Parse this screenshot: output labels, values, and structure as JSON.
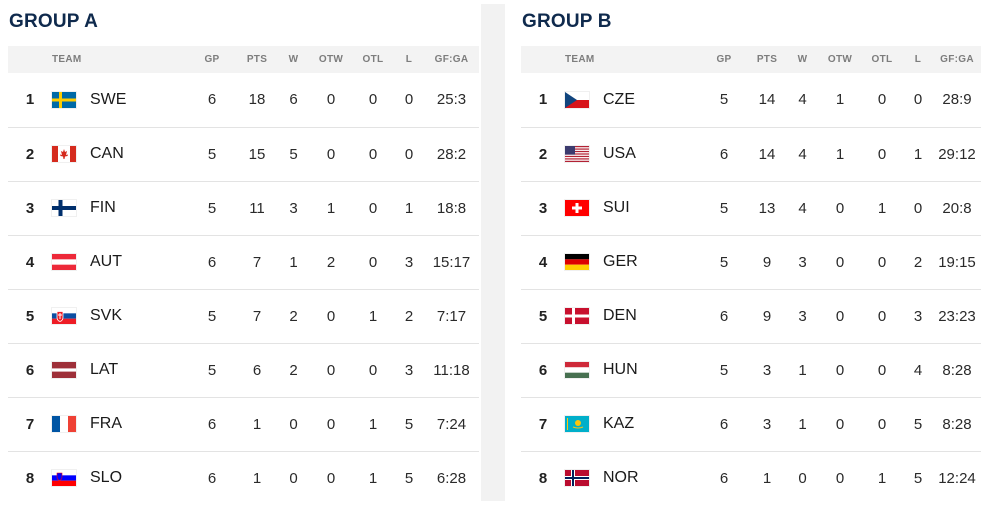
{
  "columns": {
    "team": "TEAM",
    "gp": "GP",
    "pts": "PTS",
    "w": "W",
    "otw": "OTW",
    "otl": "OTL",
    "l": "L",
    "gfga": "GF:GA"
  },
  "groups": [
    {
      "title": "GROUP A",
      "rows": [
        {
          "rank": "1",
          "flag": "sweden-flag-icon",
          "team": "SWE",
          "gp": "6",
          "pts": "18",
          "w": "6",
          "otw": "0",
          "otl": "0",
          "l": "0",
          "gfga": "25:3"
        },
        {
          "rank": "2",
          "flag": "canada-flag-icon",
          "team": "CAN",
          "gp": "5",
          "pts": "15",
          "w": "5",
          "otw": "0",
          "otl": "0",
          "l": "0",
          "gfga": "28:2"
        },
        {
          "rank": "3",
          "flag": "finland-flag-icon",
          "team": "FIN",
          "gp": "5",
          "pts": "11",
          "w": "3",
          "otw": "1",
          "otl": "0",
          "l": "1",
          "gfga": "18:8"
        },
        {
          "rank": "4",
          "flag": "austria-flag-icon",
          "team": "AUT",
          "gp": "6",
          "pts": "7",
          "w": "1",
          "otw": "2",
          "otl": "0",
          "l": "3",
          "gfga": "15:17"
        },
        {
          "rank": "5",
          "flag": "slovakia-flag-icon",
          "team": "SVK",
          "gp": "5",
          "pts": "7",
          "w": "2",
          "otw": "0",
          "otl": "1",
          "l": "2",
          "gfga": "7:17"
        },
        {
          "rank": "6",
          "flag": "latvia-flag-icon",
          "team": "LAT",
          "gp": "5",
          "pts": "6",
          "w": "2",
          "otw": "0",
          "otl": "0",
          "l": "3",
          "gfga": "11:18"
        },
        {
          "rank": "7",
          "flag": "france-flag-icon",
          "team": "FRA",
          "gp": "6",
          "pts": "1",
          "w": "0",
          "otw": "0",
          "otl": "1",
          "l": "5",
          "gfga": "7:24"
        },
        {
          "rank": "8",
          "flag": "slovenia-flag-icon",
          "team": "SLO",
          "gp": "6",
          "pts": "1",
          "w": "0",
          "otw": "0",
          "otl": "1",
          "l": "5",
          "gfga": "6:28"
        }
      ]
    },
    {
      "title": "GROUP B",
      "rows": [
        {
          "rank": "1",
          "flag": "czechia-flag-icon",
          "team": "CZE",
          "gp": "5",
          "pts": "14",
          "w": "4",
          "otw": "1",
          "otl": "0",
          "l": "0",
          "gfga": "28:9"
        },
        {
          "rank": "2",
          "flag": "usa-flag-icon",
          "team": "USA",
          "gp": "6",
          "pts": "14",
          "w": "4",
          "otw": "1",
          "otl": "0",
          "l": "1",
          "gfga": "29:12"
        },
        {
          "rank": "3",
          "flag": "switzerland-flag-icon",
          "team": "SUI",
          "gp": "5",
          "pts": "13",
          "w": "4",
          "otw": "0",
          "otl": "1",
          "l": "0",
          "gfga": "20:8"
        },
        {
          "rank": "4",
          "flag": "germany-flag-icon",
          "team": "GER",
          "gp": "5",
          "pts": "9",
          "w": "3",
          "otw": "0",
          "otl": "0",
          "l": "2",
          "gfga": "19:15"
        },
        {
          "rank": "5",
          "flag": "denmark-flag-icon",
          "team": "DEN",
          "gp": "6",
          "pts": "9",
          "w": "3",
          "otw": "0",
          "otl": "0",
          "l": "3",
          "gfga": "23:23"
        },
        {
          "rank": "6",
          "flag": "hungary-flag-icon",
          "team": "HUN",
          "gp": "5",
          "pts": "3",
          "w": "1",
          "otw": "0",
          "otl": "0",
          "l": "4",
          "gfga": "8:28"
        },
        {
          "rank": "7",
          "flag": "kazakhstan-flag-icon",
          "team": "KAZ",
          "gp": "6",
          "pts": "3",
          "w": "1",
          "otw": "0",
          "otl": "0",
          "l": "5",
          "gfga": "8:28"
        },
        {
          "rank": "8",
          "flag": "norway-flag-icon",
          "team": "NOR",
          "gp": "6",
          "pts": "1",
          "w": "0",
          "otw": "0",
          "otl": "1",
          "l": "5",
          "gfga": "12:24"
        }
      ]
    }
  ],
  "colors": {
    "title": "#0f2a4d",
    "header_bg": "#f3f3f3",
    "header_text": "#7d7d7d",
    "row_border": "#e3e3e3",
    "divider": "#f2f2f2"
  }
}
